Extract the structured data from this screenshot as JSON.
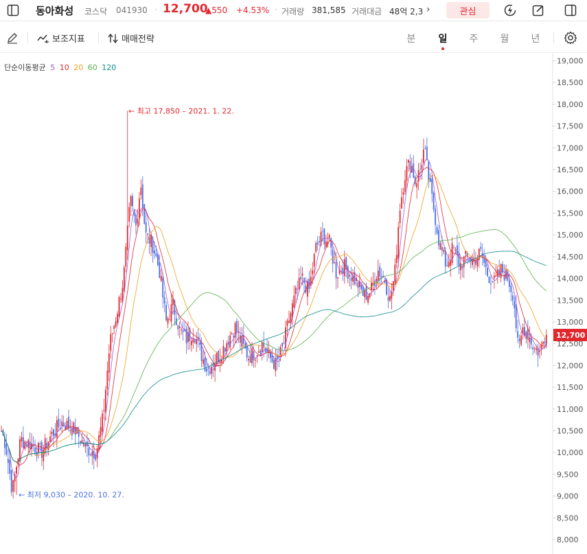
{
  "header": {
    "stock_name": "동아화성",
    "market": "코스닥",
    "code": "041930",
    "price": "12,700",
    "change": "550",
    "change_pct": "+4.53%",
    "volume_label": "거래량",
    "volume": "381,585",
    "amount_label": "거래대금",
    "amount": "48억 2,3",
    "favorite_label": "관심",
    "icons": [
      "sidebar-toggle-icon",
      "lightning-icon",
      "edit-icon",
      "panel-icon",
      "chevron-right-icon"
    ]
  },
  "toolbar": {
    "indicators_label": "보조지표",
    "strategy_label": "매매전략",
    "periods": [
      "분",
      "일",
      "주",
      "월",
      "년"
    ],
    "active_period": "일",
    "icons": [
      "pen-icon",
      "indicator-icon",
      "strategy-icon",
      "settings-icon"
    ]
  },
  "legend": {
    "title": "단순이동평균",
    "items": [
      {
        "label": "5",
        "color": "#9b59d6"
      },
      {
        "label": "10",
        "color": "#e0282e"
      },
      {
        "label": "20",
        "color": "#f0a020"
      },
      {
        "label": "60",
        "color": "#58b04a"
      },
      {
        "label": "120",
        "color": "#0f8a8a"
      }
    ]
  },
  "colors": {
    "up": "#e0282e",
    "down": "#4a6ee0"
  },
  "chart_data": {
    "type": "candlestick",
    "y_ticks": [
      "19,000",
      "18,500",
      "18,000",
      "17,500",
      "17,000",
      "16,500",
      "16,000",
      "15,500",
      "15,000",
      "14,500",
      "14,000",
      "13,500",
      "13,000",
      "12,500",
      "12,000",
      "11,500",
      "11,000",
      "10,500",
      "10,000",
      "9,500",
      "9,000",
      "8,500",
      "8,000"
    ],
    "ylim": [
      7950,
      19150
    ],
    "current_price": 12700,
    "current_price_label": "12,700",
    "high_annotation": "← 최고 17,850 – 2021. 1. 22.",
    "low_annotation": "← 최저 9,030 – 2020. 10. 27.",
    "high_value": 17850,
    "low_value": 9030,
    "price_path": [
      [
        0,
        10600
      ],
      [
        8,
        10200
      ],
      [
        18,
        9100
      ],
      [
        30,
        10300
      ],
      [
        45,
        10200
      ],
      [
        60,
        10000
      ],
      [
        75,
        10400
      ],
      [
        90,
        10700
      ],
      [
        110,
        10500
      ],
      [
        125,
        10100
      ],
      [
        140,
        10000
      ],
      [
        150,
        10800
      ],
      [
        160,
        12500
      ],
      [
        170,
        13200
      ],
      [
        180,
        14000
      ],
      [
        190,
        15800
      ],
      [
        198,
        15200
      ],
      [
        205,
        16200
      ],
      [
        212,
        15000
      ],
      [
        222,
        14800
      ],
      [
        232,
        14200
      ],
      [
        242,
        13000
      ],
      [
        252,
        13400
      ],
      [
        262,
        12800
      ],
      [
        272,
        12600
      ],
      [
        282,
        12800
      ],
      [
        292,
        12300
      ],
      [
        302,
        11900
      ],
      [
        312,
        12100
      ],
      [
        322,
        12300
      ],
      [
        332,
        12600
      ],
      [
        342,
        12900
      ],
      [
        352,
        12500
      ],
      [
        362,
        12200
      ],
      [
        372,
        12300
      ],
      [
        382,
        12500
      ],
      [
        392,
        12200
      ],
      [
        402,
        12000
      ],
      [
        412,
        12400
      ],
      [
        420,
        13000
      ],
      [
        430,
        13600
      ],
      [
        440,
        14000
      ],
      [
        450,
        13700
      ],
      [
        460,
        14700
      ],
      [
        470,
        15000
      ],
      [
        480,
        14800
      ],
      [
        490,
        14100
      ],
      [
        500,
        14300
      ],
      [
        510,
        14100
      ],
      [
        520,
        13900
      ],
      [
        530,
        13600
      ],
      [
        540,
        13700
      ],
      [
        550,
        14200
      ],
      [
        560,
        14000
      ],
      [
        568,
        13500
      ],
      [
        575,
        14100
      ],
      [
        582,
        15600
      ],
      [
        590,
        16400
      ],
      [
        598,
        16700
      ],
      [
        605,
        16200
      ],
      [
        612,
        16500
      ],
      [
        618,
        17000
      ],
      [
        625,
        16200
      ],
      [
        633,
        15500
      ],
      [
        640,
        14800
      ],
      [
        650,
        14300
      ],
      [
        660,
        14700
      ],
      [
        670,
        14300
      ],
      [
        680,
        14500
      ],
      [
        690,
        14400
      ],
      [
        700,
        14600
      ],
      [
        710,
        14100
      ],
      [
        720,
        13900
      ],
      [
        730,
        14200
      ],
      [
        740,
        14000
      ],
      [
        748,
        13600
      ],
      [
        755,
        12300
      ],
      [
        762,
        12900
      ],
      [
        770,
        12700
      ],
      [
        778,
        12400
      ],
      [
        786,
        12300
      ],
      [
        794,
        12700
      ]
    ]
  }
}
